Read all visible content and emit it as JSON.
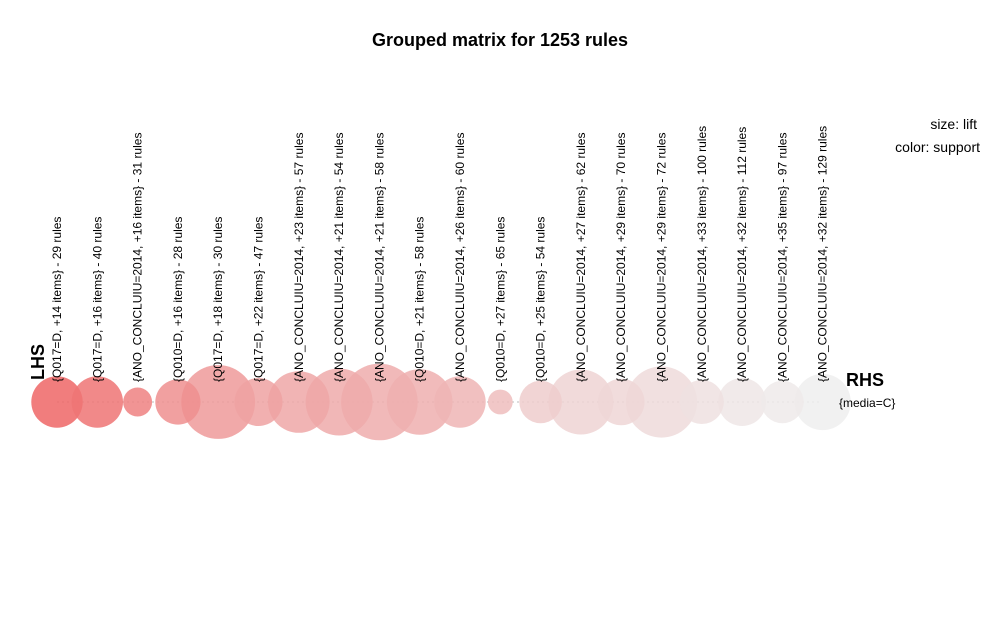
{
  "chart_data": {
    "type": "grouped-matrix",
    "title": "Grouped matrix for 1253 rules",
    "legend": {
      "size": "size: lift",
      "color": "color: support"
    },
    "lhs_title": "LHS",
    "rhs_title": "RHS",
    "rhs_items": [
      "{media=C}"
    ],
    "color_low": "#eeeeee",
    "color_high": "#ee6666",
    "groups": [
      {
        "label": "{Q017=D, +14 items} - 29 rules",
        "lift": 0.55,
        "support": 1.0
      },
      {
        "label": "{Q017=D, +16 items} - 40 rules",
        "lift": 0.55,
        "support": 0.9
      },
      {
        "label": "{ANO_CONCLUIU=2014, +16 items} - 31 rules",
        "lift": 0.22,
        "support": 0.8
      },
      {
        "label": "{Q010=D, +16 items} - 28 rules",
        "lift": 0.46,
        "support": 0.7
      },
      {
        "label": "{Q017=D, +18 items} - 30 rules",
        "lift": 0.88,
        "support": 0.62
      },
      {
        "label": "{Q017=D, +22 items} - 47 rules",
        "lift": 0.5,
        "support": 0.56
      },
      {
        "label": "{ANO_CONCLUIU=2014, +23 items} - 57 rules",
        "lift": 0.7,
        "support": 0.52
      },
      {
        "label": "{ANO_CONCLUIU=2014, +21 items} - 54 rules",
        "lift": 0.78,
        "support": 0.5
      },
      {
        "label": "{ANO_CONCLUIU=2014, +21 items} - 58 rules",
        "lift": 0.92,
        "support": 0.48
      },
      {
        "label": "{Q010=D, +21 items} - 58 rules",
        "lift": 0.76,
        "support": 0.46
      },
      {
        "label": "{ANO_CONCLUIU=2014, +26 items} - 60 rules",
        "lift": 0.55,
        "support": 0.42
      },
      {
        "label": "{Q010=D, +27 items} - 65 rules",
        "lift": 0.16,
        "support": 0.36
      },
      {
        "label": "{Q010=D, +25 items} - 54 rules",
        "lift": 0.42,
        "support": 0.24
      },
      {
        "label": "{ANO_CONCLUIU=2014, +27 items} - 62 rules",
        "lift": 0.75,
        "support": 0.2
      },
      {
        "label": "{ANO_CONCLUIU=2014, +29 items} - 70 rules",
        "lift": 0.48,
        "support": 0.18
      },
      {
        "label": "{ANO_CONCLUIU=2014, +29 items} - 72 rules",
        "lift": 0.84,
        "support": 0.15
      },
      {
        "label": "{ANO_CONCLUIU=2014, +33 items} - 100 rules",
        "lift": 0.44,
        "support": 0.1
      },
      {
        "label": "{ANO_CONCLUIU=2014, +32 items} - 112 rules",
        "lift": 0.5,
        "support": 0.06
      },
      {
        "label": "{ANO_CONCLUIU=2014, +35 items} - 97 rules",
        "lift": 0.42,
        "support": 0.03
      },
      {
        "label": "{ANO_CONCLUIU=2014, +32 items} - 129 rules",
        "lift": 0.62,
        "support": 0.0
      }
    ]
  }
}
